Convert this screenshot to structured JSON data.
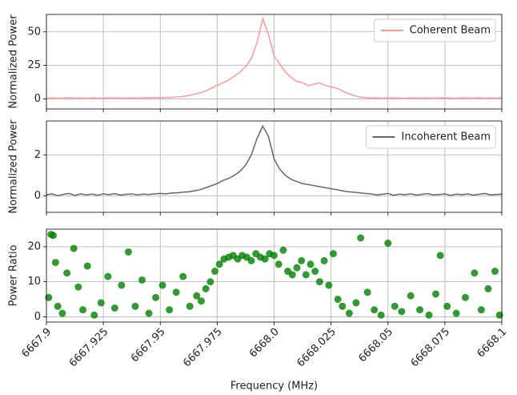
{
  "chart_data": [
    {
      "type": "line",
      "ylabel": "Normalized Power",
      "legend": "upper right",
      "grid": true,
      "xlim": [
        6667.9,
        6668.1
      ],
      "xticks": [
        6667.9,
        6667.925,
        6667.95,
        6667.975,
        {
          "value": 6668,
          "label": "6668.0"
        },
        6668.025,
        6668.05,
        6668.075,
        6668.1
      ],
      "ylim": [
        -7.5,
        63
      ],
      "yticks": [
        0,
        25,
        50
      ],
      "x": [
        6667.9,
        6667.9025,
        6667.905,
        6667.9075,
        6667.91,
        6667.9125,
        6667.915,
        6667.9175,
        6667.92,
        6667.9225,
        6667.925,
        6667.9275,
        6667.93,
        6667.9325,
        6667.935,
        6667.9375,
        6667.94,
        6667.9425,
        6667.945,
        6667.9475,
        6667.95,
        6667.9525,
        6667.955,
        6667.9575,
        6667.96,
        6667.9625,
        6667.965,
        6667.9675,
        6667.97,
        6667.9725,
        6667.975,
        6667.9775,
        6667.98,
        6667.9825,
        6667.985,
        6667.9875,
        6667.99,
        6667.9925,
        6667.995,
        6667.9975,
        6668.0,
        6668.0025,
        6668.005,
        6668.0075,
        6668.01,
        6668.0125,
        6668.015,
        6668.0175,
        6668.02,
        6668.0225,
        6668.025,
        6668.0275,
        6668.03,
        6668.0325,
        6668.035,
        6668.0375,
        6668.04,
        6668.0425,
        6668.045,
        6668.0475,
        6668.05,
        6668.0525,
        6668.055,
        6668.0575,
        6668.06,
        6668.0625,
        6668.065,
        6668.0675,
        6668.07,
        6668.0725,
        6668.075,
        6668.0775,
        6668.08,
        6668.0825,
        6668.085,
        6668.0875,
        6668.09,
        6668.0925,
        6668.095,
        6668.0975,
        6668.1
      ],
      "series": [
        {
          "name": "Coherent Beam",
          "color": "#ff9999",
          "values": [
            0.5,
            0.8,
            0.4,
            0.6,
            0.9,
            0.5,
            0.7,
            0.4,
            0.8,
            0.6,
            0.5,
            0.9,
            0.6,
            0.7,
            0.5,
            0.8,
            0.6,
            0.9,
            0.7,
            1.0,
            0.8,
            1.1,
            1.2,
            1.5,
            1.8,
            2.5,
            3.5,
            4.5,
            6,
            8,
            10,
            12,
            14,
            17,
            20,
            24,
            30,
            42,
            60,
            48,
            32,
            26,
            20,
            16,
            13,
            12,
            10,
            11,
            12,
            10,
            9,
            8,
            6,
            4,
            2.5,
            1.5,
            1.0,
            0.6,
            0.8,
            0.5,
            0.7,
            0.9,
            0.6,
            0.5,
            0.8,
            0.7,
            0.6,
            0.9,
            0.5,
            0.7,
            0.8,
            0.6,
            0.5,
            0.9,
            0.7,
            0.6,
            0.8,
            0.5,
            0.7,
            0.6,
            0.8
          ]
        }
      ]
    },
    {
      "type": "line",
      "ylabel": "Normalized Power",
      "legend": "upper right",
      "grid": true,
      "xlim": [
        6667.9,
        6668.1
      ],
      "xticks": [
        6667.9,
        6667.925,
        6667.95,
        6667.975,
        {
          "value": 6668,
          "label": "6668.0"
        },
        6668.025,
        6668.05,
        6668.075,
        6668.1
      ],
      "ylim": [
        -0.8,
        3.65
      ],
      "yticks": [
        0,
        2
      ],
      "x": [
        6667.9,
        6667.9025,
        6667.905,
        6667.9075,
        6667.91,
        6667.9125,
        6667.915,
        6667.9175,
        6667.92,
        6667.9225,
        6667.925,
        6667.9275,
        6667.93,
        6667.9325,
        6667.935,
        6667.9375,
        6667.94,
        6667.9425,
        6667.945,
        6667.9475,
        6667.95,
        6667.9525,
        6667.955,
        6667.9575,
        6667.96,
        6667.9625,
        6667.965,
        6667.9675,
        6667.97,
        6667.9725,
        6667.975,
        6667.9775,
        6667.98,
        6667.9825,
        6667.985,
        6667.9875,
        6667.99,
        6667.9925,
        6667.995,
        6667.9975,
        6668.0,
        6668.0025,
        6668.005,
        6668.0075,
        6668.01,
        6668.0125,
        6668.015,
        6668.0175,
        6668.02,
        6668.0225,
        6668.025,
        6668.0275,
        6668.03,
        6668.0325,
        6668.035,
        6668.0375,
        6668.04,
        6668.0425,
        6668.045,
        6668.0475,
        6668.05,
        6668.0525,
        6668.055,
        6668.0575,
        6668.06,
        6668.0625,
        6668.065,
        6668.0675,
        6668.07,
        6668.0725,
        6668.075,
        6668.0775,
        6668.08,
        6668.0825,
        6668.085,
        6668.0875,
        6668.09,
        6668.0925,
        6668.095,
        6668.0975,
        6668.1
      ],
      "series": [
        {
          "name": "Incoherent Beam",
          "color": "#666666",
          "values": [
            0.05,
            0.1,
            0.0,
            0.08,
            0.12,
            0.02,
            0.1,
            0.05,
            0.09,
            0.03,
            0.1,
            0.06,
            0.11,
            0.04,
            0.08,
            0.1,
            0.05,
            0.09,
            0.07,
            0.1,
            0.12,
            0.1,
            0.14,
            0.15,
            0.18,
            0.2,
            0.25,
            0.3,
            0.4,
            0.5,
            0.6,
            0.75,
            0.85,
            1.0,
            1.2,
            1.5,
            2.0,
            2.8,
            3.4,
            2.9,
            1.8,
            1.3,
            1.0,
            0.8,
            0.7,
            0.6,
            0.55,
            0.5,
            0.45,
            0.4,
            0.35,
            0.3,
            0.25,
            0.2,
            0.18,
            0.15,
            0.12,
            0.1,
            0.05,
            0.08,
            0.12,
            0.03,
            0.09,
            0.06,
            0.1,
            0.04,
            0.08,
            0.11,
            0.05,
            0.07,
            0.1,
            0.02,
            0.09,
            0.06,
            0.1,
            0.04,
            0.08,
            0.12,
            0.05,
            0.07,
            0.09
          ]
        }
      ]
    },
    {
      "type": "scatter",
      "ylabel": "Power Ratio",
      "xlabel": "Frequency (MHz)",
      "grid": true,
      "xlim": [
        6667.9,
        6668.1
      ],
      "xticks": [
        6667.9,
        6667.925,
        6667.95,
        6667.975,
        {
          "value": 6668,
          "label": "6668.0"
        },
        6668.025,
        6668.05,
        6668.075,
        6668.1
      ],
      "ylim": [
        -1.5,
        25
      ],
      "yticks": [
        0,
        10,
        20
      ],
      "x": [
        6667.901,
        6667.902,
        6667.903,
        6667.904,
        6667.905,
        6667.907,
        6667.909,
        6667.912,
        6667.914,
        6667.916,
        6667.918,
        6667.921,
        6667.924,
        6667.927,
        6667.93,
        6667.933,
        6667.936,
        6667.939,
        6667.942,
        6667.945,
        6667.948,
        6667.951,
        6667.954,
        6667.957,
        6667.96,
        6667.963,
        6667.966,
        6667.968,
        6667.97,
        6667.972,
        6667.974,
        6667.976,
        6667.978,
        6667.98,
        6667.982,
        6667.984,
        6667.986,
        6667.988,
        6667.99,
        6667.992,
        6667.994,
        6667.996,
        6667.998,
        6668.0,
        6668.002,
        6668.004,
        6668.006,
        6668.008,
        6668.01,
        6668.012,
        6668.014,
        6668.016,
        6668.018,
        6668.02,
        6668.022,
        6668.024,
        6668.026,
        6668.028,
        6668.03,
        6668.033,
        6668.036,
        6668.038,
        6668.041,
        6668.044,
        6668.047,
        6668.05,
        6668.053,
        6668.056,
        6668.06,
        6668.064,
        6668.068,
        6668.071,
        6668.073,
        6668.076,
        6668.08,
        6668.084,
        6668.088,
        6668.091,
        6668.094,
        6668.097,
        6668.099
      ],
      "series": [
        {
          "color": "#008000",
          "values": [
            5.5,
            23.5,
            23.2,
            15.5,
            3,
            1,
            12.5,
            19.5,
            8.5,
            2,
            14.5,
            0.5,
            4,
            11.5,
            2.5,
            9,
            18.5,
            3,
            10.5,
            1,
            5.5,
            9,
            2,
            7,
            11.5,
            3,
            6,
            4.5,
            8,
            10,
            13,
            15,
            16.5,
            17,
            17.5,
            16.5,
            17.5,
            17,
            16,
            18,
            17,
            16.5,
            18,
            17.5,
            15,
            19,
            13,
            12,
            14,
            16,
            12,
            15,
            13,
            10,
            16,
            9,
            18,
            5,
            3,
            1,
            4,
            22.5,
            7,
            2,
            0.5,
            21,
            3,
            1.5,
            6,
            2,
            0.5,
            6.5,
            17.5,
            3,
            1,
            5.5,
            12.5,
            2,
            8,
            13,
            0.5
          ]
        }
      ]
    }
  ]
}
